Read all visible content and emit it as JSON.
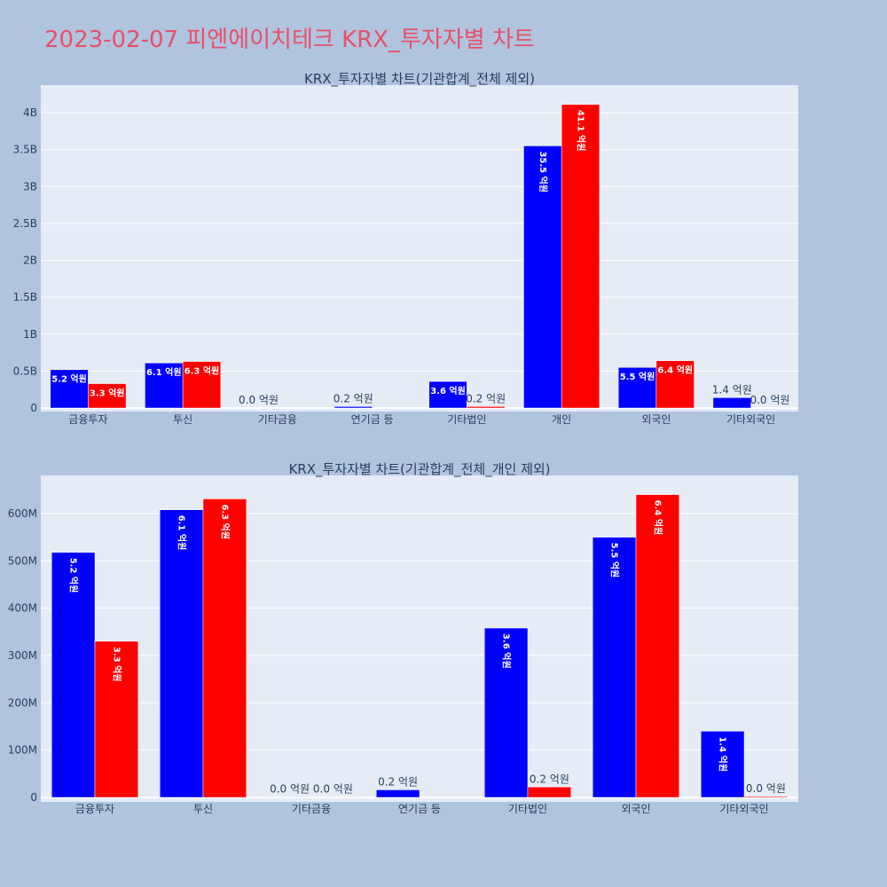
{
  "title": "2023-02-07 피엔에이치테크 KRX_투자자별 차트",
  "colors": {
    "buy": "#0000ff",
    "sell": "#ff0000",
    "plot_bg": "#e5ecf6",
    "page_bg": "#b0c4de",
    "title": "#e8506a"
  },
  "chart_data": [
    {
      "type": "bar",
      "title": "KRX_투자자별 차트(기관합계_전체 제외)",
      "categories": [
        "금융투자",
        "투신",
        "기타금융",
        "연기금 등",
        "기타법인",
        "개인",
        "외국인",
        "기타외국인"
      ],
      "ylim": [
        0,
        4400000000
      ],
      "yticks": [
        0,
        500000000,
        1000000000,
        1500000000,
        2000000000,
        2500000000,
        3000000000,
        3500000000,
        4000000000
      ],
      "ytick_labels": [
        "0",
        "0.5B",
        "1B",
        "1.5B",
        "2B",
        "2.5B",
        "3B",
        "3.5B",
        "4B"
      ],
      "grid": true,
      "series": [
        {
          "color": "#0000ff",
          "values": [
            520000000,
            610000000,
            0,
            20000000,
            360000000,
            3550000000,
            550000000,
            140000000
          ],
          "labels": [
            "5.2 억원",
            "6.1 억원",
            "0.0 억원",
            "0.2 억원",
            "3.6 억원",
            "35.5 억원",
            "5.5 억원",
            "1.4 억원"
          ]
        },
        {
          "color": "#ff0000",
          "values": [
            330000000,
            630000000,
            0,
            0,
            20000000,
            4110000000,
            640000000,
            0
          ],
          "labels": [
            "3.3 억원",
            "6.3 억원",
            "",
            "",
            "0.2 억원",
            "41.1 억원",
            "6.4 억원",
            "0.0 억원"
          ]
        }
      ]
    },
    {
      "type": "bar",
      "title": "KRX_투자자별 차트(기관합계_전체_개인 제외)",
      "categories": [
        "금융투자",
        "투신",
        "기타금융",
        "연기금 등",
        "기타법인",
        "외국인",
        "기타외국인"
      ],
      "ylim": [
        0,
        680000000
      ],
      "yticks": [
        0,
        100000000,
        200000000,
        300000000,
        400000000,
        500000000,
        600000000
      ],
      "ytick_labels": [
        "0",
        "100M",
        "200M",
        "300M",
        "400M",
        "500M",
        "600M"
      ],
      "grid": true,
      "series": [
        {
          "color": "#0000ff",
          "values": [
            518000000,
            608000000,
            1000000,
            16000000,
            358000000,
            550000000,
            140000000
          ],
          "labels": [
            "5.2 억원",
            "6.1 억원",
            "0.0 억원",
            "0.2 억원",
            "3.6 억원",
            "5.5 억원",
            "1.4 억원"
          ]
        },
        {
          "color": "#ff0000",
          "values": [
            330000000,
            631000000,
            1000000,
            0,
            22000000,
            640000000,
            2000000
          ],
          "labels": [
            "3.3 억원",
            "6.3 억원",
            "0.0 억원",
            "",
            "0.2 억원",
            "6.4 억원",
            "0.0 억원"
          ]
        }
      ]
    }
  ]
}
